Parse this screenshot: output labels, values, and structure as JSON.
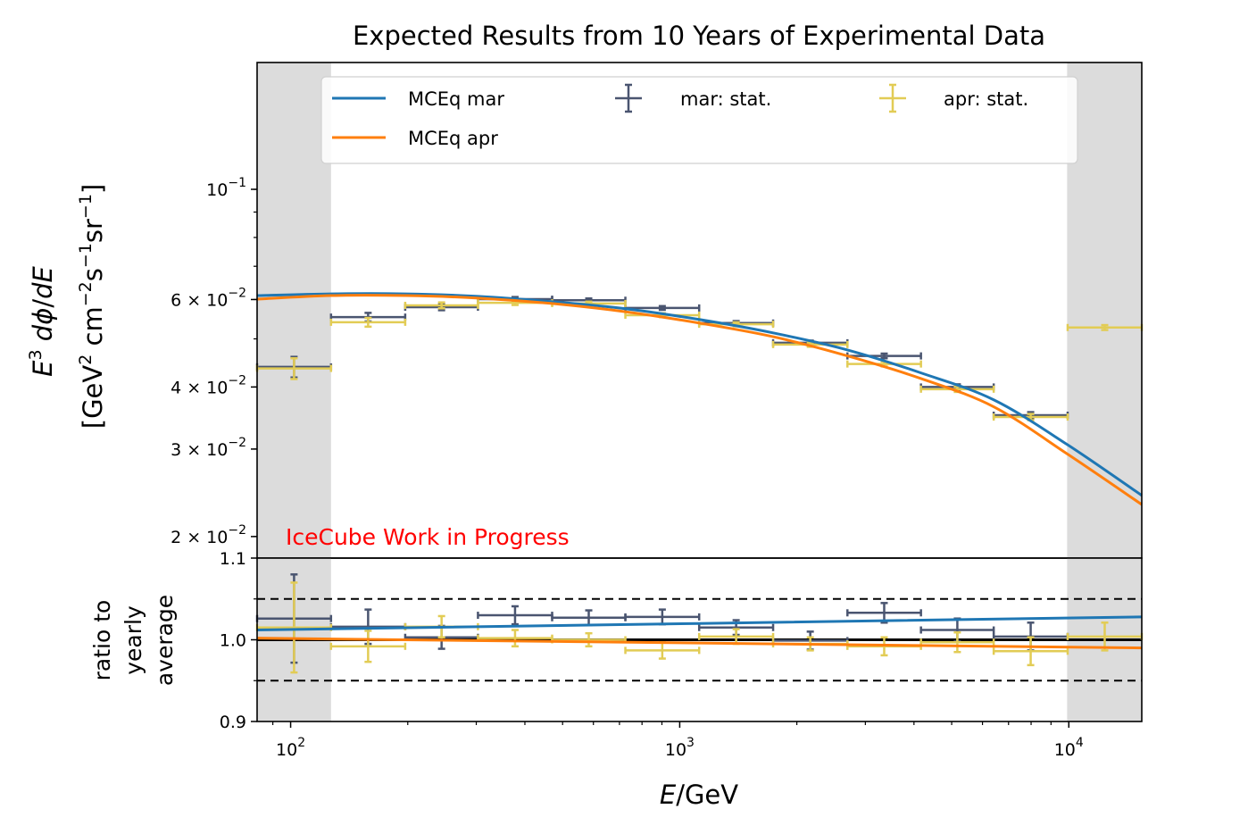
{
  "chart_data": [
    {
      "type": "line",
      "panel": "main",
      "title": "Expected Results from 10 Years of Experimental Data",
      "xlabel": "E/GeV",
      "ylabel_line1": "E³ dΦ/dE",
      "ylabel_line2": "[GeV² cm⁻² s⁻¹ sr⁻¹]",
      "xscale": "log",
      "yscale": "log",
      "xlim": [
        82,
        15400
      ],
      "ylim": [
        0.0181,
        0.18
      ],
      "grid": false,
      "yticks": [
        {
          "value": 0.1,
          "label_base": "10",
          "label_exp": "−1",
          "label_prefix": ""
        },
        {
          "value": 0.06,
          "label_base": "10",
          "label_exp": "−2",
          "label_prefix": "6 × "
        },
        {
          "value": 0.04,
          "label_base": "10",
          "label_exp": "−2",
          "label_prefix": "4 × "
        },
        {
          "value": 0.03,
          "label_base": "10",
          "label_exp": "−2",
          "label_prefix": "3 × "
        },
        {
          "value": 0.02,
          "label_base": "10",
          "label_exp": "−2",
          "label_prefix": "2 × "
        }
      ],
      "shaded_regions": [
        [
          82,
          127
        ],
        [
          9900,
          15400
        ]
      ],
      "shade_color": "#dcdcdc",
      "annotation": {
        "text": "IceCube Work in Progress",
        "color": "#ff0000"
      },
      "legend": {
        "placement": "top-center",
        "columns": 3,
        "entries": [
          {
            "label": "MCEq mar",
            "kind": "line",
            "color": "#1f77b4"
          },
          {
            "label": "MCEq apr",
            "kind": "line",
            "color": "#ff7f0e"
          },
          {
            "label": "mar: stat.",
            "kind": "errorbar",
            "color": "#4a5570"
          },
          {
            "label": "apr: stat.",
            "kind": "errorbar",
            "color": "#e2cc55"
          }
        ]
      },
      "bin_edges": [
        82,
        127,
        197,
        303,
        470,
        725,
        1122,
        1738,
        2698,
        4169,
        6412,
        9932,
        15400
      ],
      "curves": {
        "x": [
          82,
          127,
          197,
          303,
          470,
          725,
          1122,
          1738,
          2698,
          4169,
          6412,
          9932,
          15400
        ],
        "series": [
          {
            "name": "MCEq mar",
            "color": "#1f77b4",
            "values": [
              0.0611,
              0.0616,
              0.0616,
              0.0609,
              0.0594,
              0.0575,
              0.0547,
              0.0514,
              0.0475,
              0.0427,
              0.0377,
              0.0306,
              0.0242
            ]
          },
          {
            "name": "MCEq apr",
            "color": "#ff7f0e",
            "values": [
              0.0601,
              0.0611,
              0.0611,
              0.0604,
              0.0589,
              0.0567,
              0.0538,
              0.0505,
              0.0462,
              0.0416,
              0.0365,
              0.0293,
              0.0232
            ]
          }
        ]
      },
      "points": [
        {
          "name": "mar: stat.",
          "color": "#4a5570",
          "values": [
            0.0439,
            0.0553,
            0.0579,
            0.0601,
            0.0598,
            0.0577,
            0.0538,
            0.0491,
            0.0462,
            0.04,
            0.0351,
            null
          ],
          "errors": [
            0.0021,
            0.0011,
            0.0008,
            0.0006,
            0.0005,
            0.0005,
            0.0005,
            0.0005,
            0.0005,
            0.0005,
            0.0005,
            null
          ]
        },
        {
          "name": "apr: stat.",
          "color": "#e2cc55",
          "values": [
            0.0436,
            0.054,
            0.0584,
            0.0591,
            0.0589,
            0.0558,
            0.0535,
            0.0487,
            0.0445,
            0.0396,
            0.0348,
            0.0527
          ],
          "errors": [
            0.0021,
            0.0011,
            0.0008,
            0.0006,
            0.0005,
            0.0005,
            0.0005,
            0.0005,
            0.0005,
            0.0005,
            0.0005,
            0.0006
          ]
        }
      ]
    },
    {
      "type": "line",
      "panel": "ratio",
      "ylabel_lines": [
        "ratio to",
        "yearly",
        "average"
      ],
      "xlabel": "E/GeV",
      "xscale": "log",
      "xlim": [
        82,
        15400
      ],
      "ylim": [
        0.9,
        1.1
      ],
      "yticks": [
        0.9,
        1.0,
        1.1
      ],
      "ytick_labels": [
        "0.9",
        "1.0",
        "1.1"
      ],
      "xticks": [
        {
          "value": 100,
          "label_base": "10",
          "label_exp": "2"
        },
        {
          "value": 1000,
          "label_base": "10",
          "label_exp": "3"
        },
        {
          "value": 10000,
          "label_base": "10",
          "label_exp": "4"
        }
      ],
      "reference_line": 1.0,
      "band_lines": [
        0.95,
        1.05
      ],
      "bin_edges": [
        82,
        127,
        197,
        303,
        470,
        725,
        1122,
        1738,
        2698,
        4169,
        6412,
        9932,
        15400
      ],
      "curves": {
        "x": [
          82,
          15400
        ],
        "series": [
          {
            "name": "MCEq mar",
            "color": "#1f77b4",
            "values": [
              1.012,
              1.028
            ]
          },
          {
            "name": "MCEq apr",
            "color": "#ff7f0e",
            "values": [
              1.002,
              0.99
            ]
          }
        ]
      },
      "points": [
        {
          "name": "mar: stat.",
          "color": "#4a5570",
          "values": [
            1.026,
            1.016,
            1.003,
            1.03,
            1.027,
            1.028,
            1.015,
            0.999,
            1.033,
            1.012,
            1.004,
            null
          ],
          "errors": [
            0.054,
            0.021,
            0.014,
            0.011,
            0.009,
            0.009,
            0.009,
            0.011,
            0.012,
            0.014,
            0.017,
            null
          ]
        },
        {
          "name": "apr: stat.",
          "color": "#e2cc55",
          "values": [
            1.015,
            0.992,
            1.016,
            1.002,
            1.0,
            0.987,
            1.004,
            0.995,
            0.992,
            0.997,
            0.986,
            1.004
          ],
          "errors": [
            0.055,
            0.019,
            0.013,
            0.01,
            0.008,
            0.01,
            0.009,
            0.008,
            0.011,
            0.012,
            0.017,
            0.017
          ]
        }
      ]
    }
  ]
}
